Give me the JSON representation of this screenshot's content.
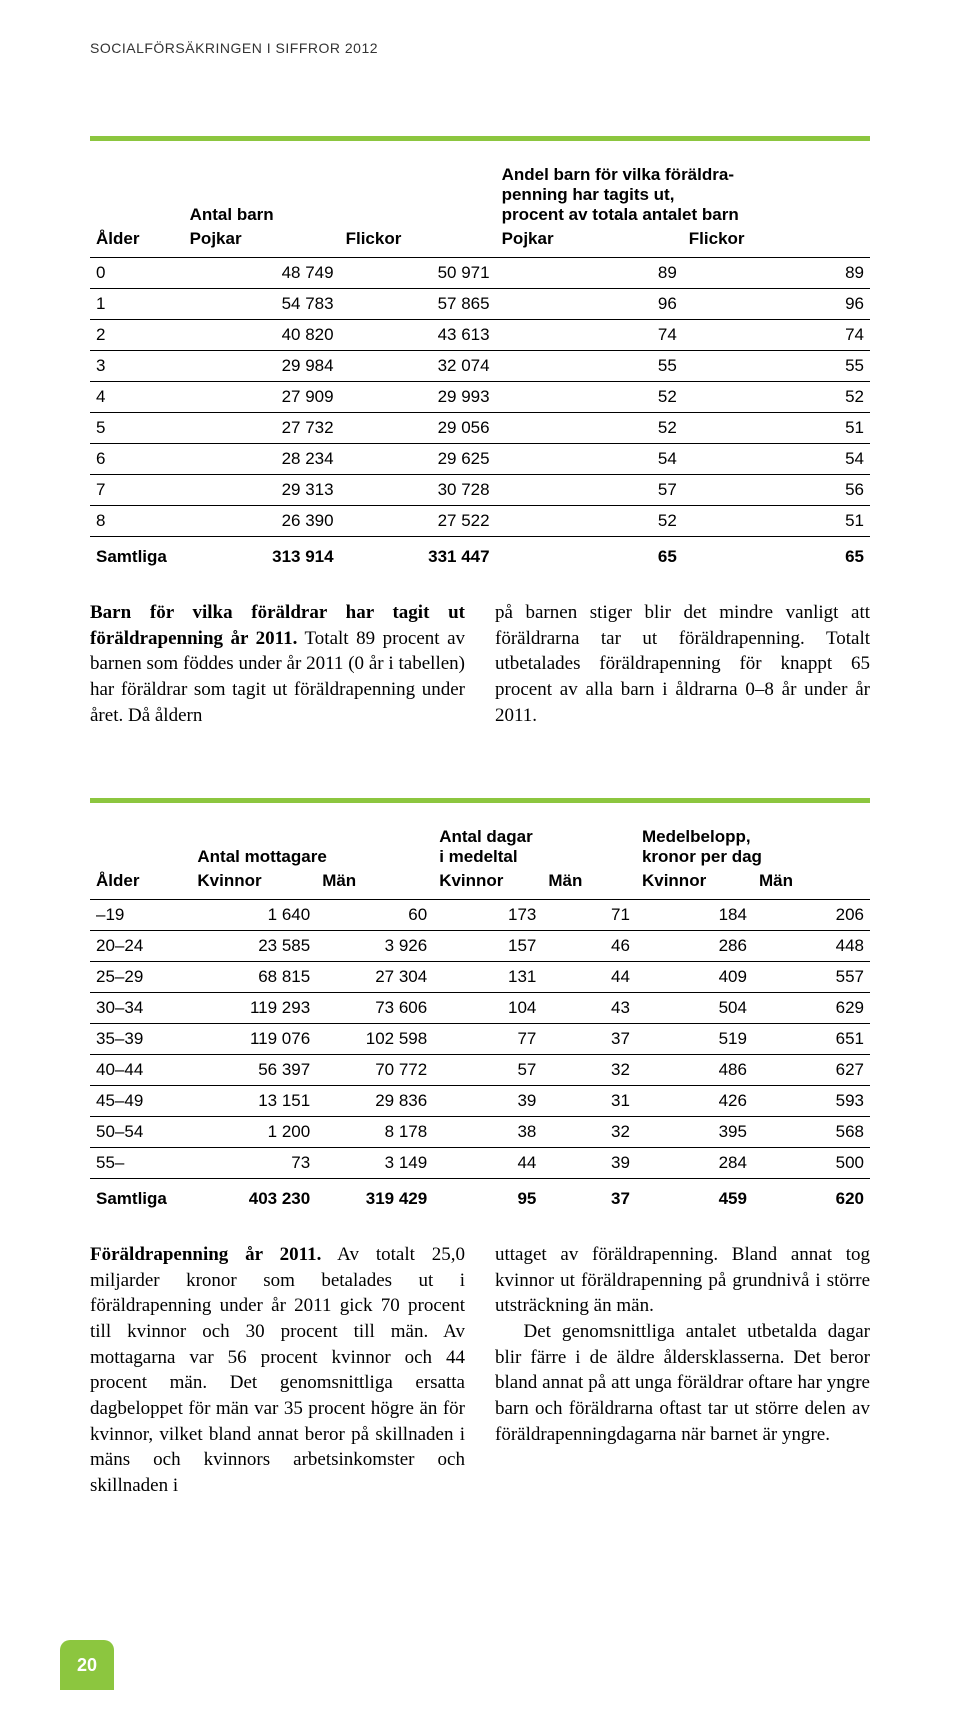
{
  "running_head": "SOCIALFÖRSÄKRINGEN I SIFFROR 2012",
  "page_number": "20",
  "accent_color": "#8cc63f",
  "table1": {
    "col_alder": "Ålder",
    "group_antal": "Antal barn",
    "col_pojkar": "Pojkar",
    "col_flickor": "Flickor",
    "group_andel_line1": "Andel barn för vilka föräldra-",
    "group_andel_line2": "penning har tagits ut,",
    "group_andel_line3": "procent av totala antalet barn",
    "rows": [
      {
        "a": "0",
        "p": "48 749",
        "f": "50 971",
        "pp": "89",
        "fp": "89"
      },
      {
        "a": "1",
        "p": "54 783",
        "f": "57 865",
        "pp": "96",
        "fp": "96"
      },
      {
        "a": "2",
        "p": "40 820",
        "f": "43 613",
        "pp": "74",
        "fp": "74"
      },
      {
        "a": "3",
        "p": "29 984",
        "f": "32 074",
        "pp": "55",
        "fp": "55"
      },
      {
        "a": "4",
        "p": "27 909",
        "f": "29 993",
        "pp": "52",
        "fp": "52"
      },
      {
        "a": "5",
        "p": "27 732",
        "f": "29 056",
        "pp": "52",
        "fp": "51"
      },
      {
        "a": "6",
        "p": "28 234",
        "f": "29 625",
        "pp": "54",
        "fp": "54"
      },
      {
        "a": "7",
        "p": "29 313",
        "f": "30 728",
        "pp": "57",
        "fp": "56"
      },
      {
        "a": "8",
        "p": "26 390",
        "f": "27 522",
        "pp": "52",
        "fp": "51"
      }
    ],
    "sum_label": "Samtliga",
    "sum": {
      "p": "313 914",
      "f": "331 447",
      "pp": "65",
      "fp": "65"
    }
  },
  "para1": {
    "left_lede": "Barn för vilka föräldrar har tagit ut föräldrapenning år 2011.",
    "left_rest": " Totalt 89 procent av barnen som föddes under år 2011 (0 år i tabellen) har föräldrar som tagit ut föräldrapenning under året. Då åldern",
    "right": "på barnen stiger blir det mindre vanligt att föräldrarna tar ut föräldrapenning. Totalt utbetalades föräldrapenning för knappt 65 procent av alla barn i åldrarna 0–8 år under år 2011."
  },
  "table2": {
    "col_alder": "Ålder",
    "group_antal": "Antal mottagare",
    "group_dagar_l1": "Antal dagar",
    "group_dagar_l2": "i medeltal",
    "group_medel_l1": "Medelbelopp,",
    "group_medel_l2": "kronor per dag",
    "col_kv": "Kvinnor",
    "col_man": "Män",
    "rows": [
      {
        "a": "–19",
        "k1": "1 640",
        "m1": "60",
        "k2": "173",
        "m2": "71",
        "k3": "184",
        "m3": "206"
      },
      {
        "a": "20–24",
        "k1": "23 585",
        "m1": "3 926",
        "k2": "157",
        "m2": "46",
        "k3": "286",
        "m3": "448"
      },
      {
        "a": "25–29",
        "k1": "68 815",
        "m1": "27 304",
        "k2": "131",
        "m2": "44",
        "k3": "409",
        "m3": "557"
      },
      {
        "a": "30–34",
        "k1": "119 293",
        "m1": "73 606",
        "k2": "104",
        "m2": "43",
        "k3": "504",
        "m3": "629"
      },
      {
        "a": "35–39",
        "k1": "119 076",
        "m1": "102 598",
        "k2": "77",
        "m2": "37",
        "k3": "519",
        "m3": "651"
      },
      {
        "a": "40–44",
        "k1": "56 397",
        "m1": "70 772",
        "k2": "57",
        "m2": "32",
        "k3": "486",
        "m3": "627"
      },
      {
        "a": "45–49",
        "k1": "13 151",
        "m1": "29 836",
        "k2": "39",
        "m2": "31",
        "k3": "426",
        "m3": "593"
      },
      {
        "a": "50–54",
        "k1": "1 200",
        "m1": "8 178",
        "k2": "38",
        "m2": "32",
        "k3": "395",
        "m3": "568"
      },
      {
        "a": "55–",
        "k1": "73",
        "m1": "3 149",
        "k2": "44",
        "m2": "39",
        "k3": "284",
        "m3": "500"
      }
    ],
    "sum_label": "Samtliga",
    "sum": {
      "k1": "403 230",
      "m1": "319 429",
      "k2": "95",
      "m2": "37",
      "k3": "459",
      "m3": "620"
    }
  },
  "para2": {
    "left_lede": "Föräldrapenning år 2011.",
    "left_rest": " Av totalt 25,0 miljarder kronor som betalades ut i föräldrapenning under år 2011 gick 70 procent till kvinnor och 30 procent till män. Av mottagarna var 56 procent kvinnor och 44 procent män. Det genomsnittliga ersatta dagbeloppet för män var 35 procent högre än för kvinnor, vilket bland annat beror på skillnaden i mäns och kvinnors arbetsinkomster och skillnaden i",
    "right1": "uttaget av föräldrapenning. Bland annat tog kvinnor ut föräldrapenning på grundnivå i större utsträckning än män.",
    "right2": "Det genomsnittliga antalet utbetalda dagar blir färre i de äldre åldersklasserna. Det beror bland annat på att unga föräldrar oftare har yngre barn och föräldrarna oftast tar ut större delen av föräldrapenningdagarna när barnet är yngre."
  }
}
